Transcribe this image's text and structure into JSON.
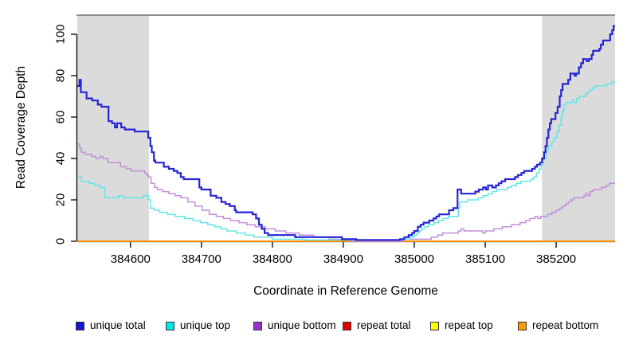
{
  "chart_data": {
    "type": "line",
    "subtype": "step-coverage-plot",
    "title": "",
    "xlabel": "Coordinate in Reference Genome",
    "ylabel": "Read Coverage Depth",
    "xlim": [
      384525,
      385283
    ],
    "ylim": [
      0,
      109
    ],
    "grid": false,
    "legend_position": "bottom",
    "x_ticks": [
      "384600",
      "384700",
      "384800",
      "384900",
      "385000",
      "385100",
      "385200"
    ],
    "x_tick_values": [
      384600,
      384700,
      384800,
      384900,
      385000,
      385100,
      385200
    ],
    "y_ticks": [
      "0",
      "20",
      "40",
      "60",
      "80",
      "100"
    ],
    "y_tick_values": [
      0,
      20,
      40,
      60,
      80,
      100
    ],
    "shaded_regions": [
      {
        "x0": 384525,
        "x1": 384626,
        "color": "#DBDBDB"
      },
      {
        "x0": 385180,
        "x1": 385283,
        "color": "#DBDBDB"
      }
    ],
    "top_border_color": "#8F8F8F",
    "axis_color": "#000000",
    "series": [
      {
        "name": "unique total",
        "line_color": "#2424D6",
        "legend_fill": "#1515D9",
        "line_width": 2.2,
        "points": [
          [
            384525,
            75
          ],
          [
            384528,
            78
          ],
          [
            384530,
            72
          ],
          [
            384538,
            69
          ],
          [
            384546,
            68
          ],
          [
            384554,
            66
          ],
          [
            384559,
            65
          ],
          [
            384569,
            58
          ],
          [
            384574,
            57
          ],
          [
            384578,
            55
          ],
          [
            384581,
            57
          ],
          [
            384587,
            55
          ],
          [
            384592,
            54
          ],
          [
            384606,
            53
          ],
          [
            384625,
            50
          ],
          [
            384628,
            46
          ],
          [
            384630,
            43
          ],
          [
            384633,
            39
          ],
          [
            384635,
            38
          ],
          [
            384647,
            36
          ],
          [
            384654,
            35
          ],
          [
            384661,
            34
          ],
          [
            384666,
            33
          ],
          [
            384671,
            31
          ],
          [
            384675,
            30
          ],
          [
            384697,
            26
          ],
          [
            384700,
            25
          ],
          [
            384713,
            22
          ],
          [
            384721,
            21
          ],
          [
            384728,
            19
          ],
          [
            384734,
            18
          ],
          [
            384740,
            17
          ],
          [
            384747,
            15
          ],
          [
            384749,
            14
          ],
          [
            384772,
            13
          ],
          [
            384777,
            11
          ],
          [
            384781,
            8
          ],
          [
            384785,
            6
          ],
          [
            384789,
            4
          ],
          [
            384794,
            3
          ],
          [
            384832,
            2
          ],
          [
            384898,
            1
          ],
          [
            384918,
            0.6
          ],
          [
            384980,
            1
          ],
          [
            384986,
            2
          ],
          [
            384992,
            3
          ],
          [
            384997,
            4
          ],
          [
            385000,
            5
          ],
          [
            385005,
            7
          ],
          [
            385009,
            8
          ],
          [
            385013,
            9
          ],
          [
            385021,
            10
          ],
          [
            385027,
            11
          ],
          [
            385031,
            12
          ],
          [
            385035,
            13
          ],
          [
            385049,
            15
          ],
          [
            385055,
            16
          ],
          [
            385061,
            25
          ],
          [
            385066,
            23
          ],
          [
            385086,
            24
          ],
          [
            385091,
            25
          ],
          [
            385097,
            26
          ],
          [
            385101,
            25
          ],
          [
            385104,
            27
          ],
          [
            385110,
            26
          ],
          [
            385115,
            27
          ],
          [
            385119,
            28
          ],
          [
            385123,
            29
          ],
          [
            385128,
            30
          ],
          [
            385142,
            31
          ],
          [
            385146,
            32
          ],
          [
            385151,
            33
          ],
          [
            385155,
            34
          ],
          [
            385166,
            35
          ],
          [
            385170,
            36
          ],
          [
            385173,
            37
          ],
          [
            385177,
            38
          ],
          [
            385180,
            40
          ],
          [
            385183,
            43
          ],
          [
            385185,
            46
          ],
          [
            385187,
            50
          ],
          [
            385189,
            54
          ],
          [
            385191,
            57
          ],
          [
            385193,
            59
          ],
          [
            385199,
            62
          ],
          [
            385202,
            65
          ],
          [
            385205,
            70
          ],
          [
            385207,
            73
          ],
          [
            385209,
            76
          ],
          [
            385217,
            78
          ],
          [
            385220,
            81
          ],
          [
            385226,
            80
          ],
          [
            385228,
            81
          ],
          [
            385232,
            84
          ],
          [
            385235,
            86
          ],
          [
            385238,
            88
          ],
          [
            385243,
            87
          ],
          [
            385246,
            88
          ],
          [
            385250,
            90
          ],
          [
            385252,
            92
          ],
          [
            385261,
            93
          ],
          [
            385263,
            95
          ],
          [
            385266,
            97
          ],
          [
            385276,
            100
          ],
          [
            385279,
            102
          ],
          [
            385281,
            104
          ]
        ]
      },
      {
        "name": "unique top",
        "line_color": "#63E6E6",
        "legend_fill": "#00E8E8",
        "line_width": 1.5,
        "points": [
          [
            384525,
            31
          ],
          [
            384531,
            29
          ],
          [
            384542,
            28
          ],
          [
            384549,
            27
          ],
          [
            384558,
            26
          ],
          [
            384564,
            21
          ],
          [
            384583,
            22
          ],
          [
            384589,
            21
          ],
          [
            384618,
            22
          ],
          [
            384625,
            20
          ],
          [
            384628,
            16
          ],
          [
            384633,
            15
          ],
          [
            384641,
            14
          ],
          [
            384652,
            13
          ],
          [
            384663,
            12
          ],
          [
            384676,
            11
          ],
          [
            384688,
            10
          ],
          [
            384699,
            9
          ],
          [
            384709,
            8
          ],
          [
            384718,
            7
          ],
          [
            384727,
            6
          ],
          [
            384736,
            5
          ],
          [
            384749,
            4
          ],
          [
            384762,
            3
          ],
          [
            384774,
            2
          ],
          [
            384800,
            1
          ],
          [
            384845,
            0.6
          ],
          [
            384984,
            1
          ],
          [
            384994,
            2
          ],
          [
            385000,
            3
          ],
          [
            385004,
            4
          ],
          [
            385007,
            5
          ],
          [
            385010,
            6
          ],
          [
            385015,
            7
          ],
          [
            385020,
            8
          ],
          [
            385028,
            9
          ],
          [
            385034,
            10
          ],
          [
            385040,
            11
          ],
          [
            385048,
            12
          ],
          [
            385062,
            16
          ],
          [
            385064,
            19
          ],
          [
            385075,
            20
          ],
          [
            385090,
            21
          ],
          [
            385097,
            22
          ],
          [
            385104,
            23
          ],
          [
            385110,
            24
          ],
          [
            385116,
            25
          ],
          [
            385131,
            26
          ],
          [
            385137,
            27
          ],
          [
            385144,
            28
          ],
          [
            385150,
            29
          ],
          [
            385164,
            30
          ],
          [
            385168,
            31
          ],
          [
            385172,
            33
          ],
          [
            385176,
            35
          ],
          [
            385179,
            37
          ],
          [
            385182,
            40
          ],
          [
            385186,
            44
          ],
          [
            385189,
            46
          ],
          [
            385194,
            48
          ],
          [
            385197,
            50
          ],
          [
            385201,
            53
          ],
          [
            385204,
            56
          ],
          [
            385207,
            60
          ],
          [
            385209,
            63
          ],
          [
            385211,
            66
          ],
          [
            385214,
            67
          ],
          [
            385222,
            68
          ],
          [
            385225,
            67
          ],
          [
            385229,
            69
          ],
          [
            385233,
            70
          ],
          [
            385241,
            71
          ],
          [
            385244,
            72
          ],
          [
            385247,
            73
          ],
          [
            385251,
            74
          ],
          [
            385255,
            75
          ],
          [
            385271,
            76
          ],
          [
            385279,
            77
          ]
        ]
      },
      {
        "name": "unique bottom",
        "line_color": "#C18FD9",
        "legend_fill": "#9932CC",
        "line_width": 1.5,
        "points": [
          [
            384525,
            47
          ],
          [
            384528,
            45
          ],
          [
            384531,
            43
          ],
          [
            384536,
            42
          ],
          [
            384545,
            41
          ],
          [
            384551,
            40
          ],
          [
            384557,
            41
          ],
          [
            384561,
            40
          ],
          [
            384568,
            38
          ],
          [
            384586,
            36
          ],
          [
            384594,
            35
          ],
          [
            384601,
            34
          ],
          [
            384620,
            33
          ],
          [
            384623,
            32
          ],
          [
            384625,
            31
          ],
          [
            384629,
            28
          ],
          [
            384634,
            26
          ],
          [
            384638,
            25
          ],
          [
            384645,
            24
          ],
          [
            384654,
            23
          ],
          [
            384663,
            22
          ],
          [
            384671,
            21
          ],
          [
            384681,
            19
          ],
          [
            384691,
            17
          ],
          [
            384701,
            15
          ],
          [
            384711,
            13
          ],
          [
            384721,
            12
          ],
          [
            384731,
            11
          ],
          [
            384741,
            10
          ],
          [
            384753,
            9
          ],
          [
            384764,
            8
          ],
          [
            384776,
            7
          ],
          [
            384790,
            6
          ],
          [
            384804,
            5
          ],
          [
            384819,
            4
          ],
          [
            384838,
            3
          ],
          [
            384858,
            2
          ],
          [
            384880,
            1
          ],
          [
            384910,
            0
          ],
          [
            384984,
            1
          ],
          [
            385024,
            2
          ],
          [
            385033,
            3
          ],
          [
            385040,
            4
          ],
          [
            385062,
            5
          ],
          [
            385066,
            6
          ],
          [
            385070,
            5
          ],
          [
            385096,
            4
          ],
          [
            385100,
            5
          ],
          [
            385112,
            6
          ],
          [
            385124,
            7
          ],
          [
            385137,
            8
          ],
          [
            385149,
            9
          ],
          [
            385157,
            10
          ],
          [
            385163,
            11
          ],
          [
            385170,
            12
          ],
          [
            385174,
            11
          ],
          [
            385178,
            12
          ],
          [
            385188,
            13
          ],
          [
            385194,
            14
          ],
          [
            385200,
            15
          ],
          [
            385205,
            16
          ],
          [
            385209,
            17
          ],
          [
            385213,
            18
          ],
          [
            385217,
            19
          ],
          [
            385221,
            20
          ],
          [
            385225,
            21
          ],
          [
            385239,
            22
          ],
          [
            385242,
            23
          ],
          [
            385245,
            22
          ],
          [
            385248,
            24
          ],
          [
            385252,
            25
          ],
          [
            385264,
            26
          ],
          [
            385270,
            27
          ],
          [
            385275,
            28
          ]
        ]
      },
      {
        "name": "repeat total",
        "line_color": "#CC0000",
        "legend_fill": "#E60000",
        "line_width": 1.5,
        "points": [
          [
            384525,
            0
          ]
        ]
      },
      {
        "name": "repeat top",
        "line_color": "#FFFF00",
        "legend_fill": "#FFFF00",
        "line_width": 1.5,
        "points": [
          [
            384525,
            0
          ]
        ]
      },
      {
        "name": "repeat bottom",
        "line_color": "#FF8C00",
        "legend_fill": "#FF9900",
        "line_width": 2,
        "points": [
          [
            384525,
            0
          ]
        ]
      }
    ]
  }
}
